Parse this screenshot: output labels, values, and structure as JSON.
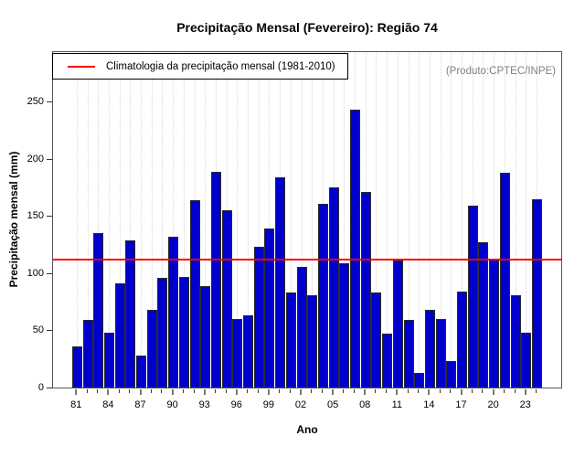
{
  "title": "Precipitação Mensal (Fevereiro): Região 74",
  "legend": {
    "label": "Climatologia da precipitação mensal (1981-2010)"
  },
  "annotation": "(Produto:CPTEC/INPE)",
  "colors": {
    "bar_fill": "#0000CC",
    "bar_border": "#2b2b2b",
    "climatology_line": "#ff0000",
    "grid": "#d9d9d9",
    "annotation_text": "#808080"
  },
  "chart_data": {
    "type": "bar",
    "title": "Precipitação Mensal (Fevereiro): Região 74",
    "xlabel": "Ano",
    "ylabel": "Precipitação mensal (mm)",
    "ylim": [
      0,
      295
    ],
    "grid": "vertical-dotted-per-year",
    "legend_position": "top-left",
    "y_ticks": [
      0,
      50,
      100,
      150,
      200,
      250
    ],
    "x_tick_labels": [
      "81",
      "84",
      "87",
      "90",
      "93",
      "96",
      "99",
      "02",
      "05",
      "08",
      "11",
      "14",
      "17",
      "20",
      "23"
    ],
    "x_label_step": 3,
    "climatology": 112,
    "years": [
      1981,
      1982,
      1983,
      1984,
      1985,
      1986,
      1987,
      1988,
      1989,
      1990,
      1991,
      1992,
      1993,
      1994,
      1995,
      1996,
      1997,
      1998,
      1999,
      2000,
      2001,
      2002,
      2003,
      2004,
      2005,
      2006,
      2007,
      2008,
      2009,
      2010,
      2011,
      2012,
      2013,
      2014,
      2015,
      2016,
      2017,
      2018,
      2019,
      2020,
      2021,
      2022,
      2023,
      2024
    ],
    "values": [
      36,
      59,
      135,
      48,
      91,
      129,
      28,
      68,
      96,
      132,
      97,
      164,
      89,
      189,
      155,
      60,
      63,
      123,
      139,
      184,
      83,
      106,
      81,
      161,
      175,
      109,
      243,
      171,
      83,
      47,
      111,
      59,
      13,
      68,
      60,
      23,
      84,
      159,
      127,
      113,
      188,
      81,
      48,
      165
    ]
  }
}
